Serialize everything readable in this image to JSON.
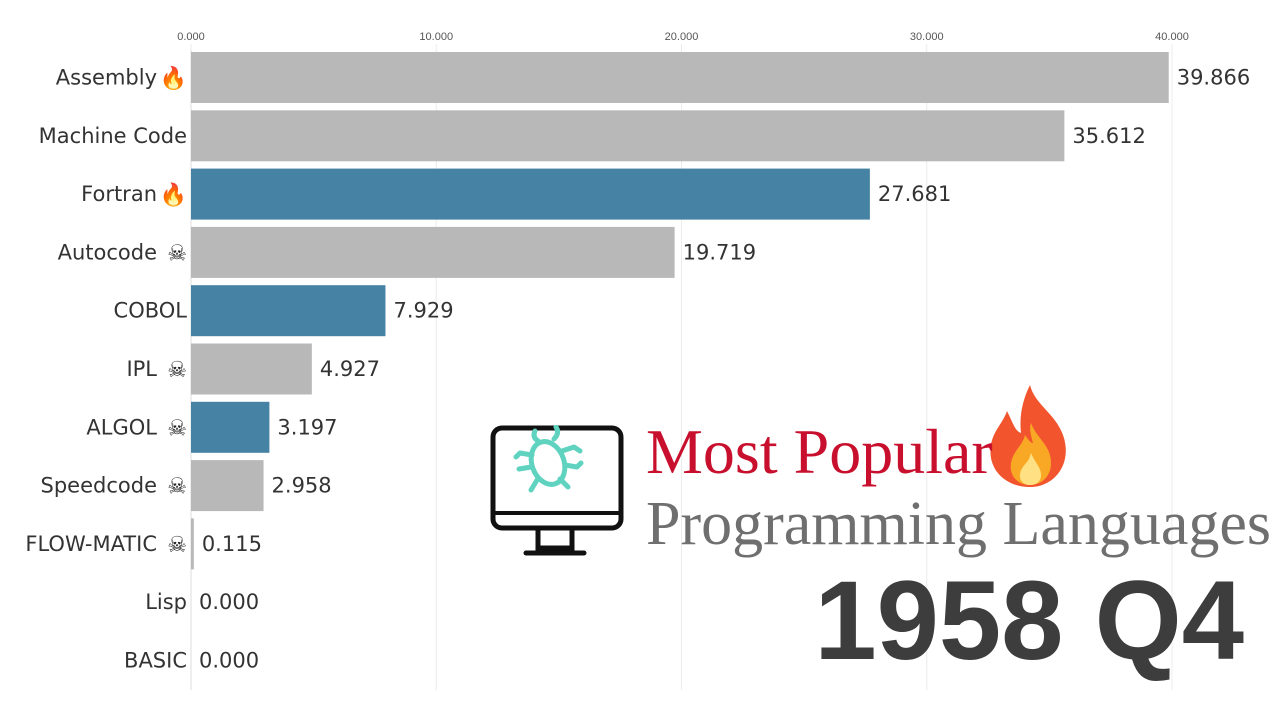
{
  "title": {
    "line1": "Most Popular",
    "line2": "Programming Languages"
  },
  "period_label": "1958 Q4",
  "icons": {
    "monitor": "monitor-bug-icon",
    "title_flame": "fire-icon"
  },
  "colors": {
    "bar_gray": "#b8b8b8",
    "bar_blue": "#4682a3",
    "title_red": "#c8102e",
    "title_gray": "#6f6f6f",
    "period": "#3d3d3d",
    "bug": "#5fd3bf"
  },
  "chart_data": {
    "type": "bar",
    "orientation": "horizontal",
    "xlim": [
      0,
      40
    ],
    "xticks": [
      {
        "value": 0,
        "label": "0.000"
      },
      {
        "value": 10,
        "label": "10.000"
      },
      {
        "value": 20,
        "label": "20.000"
      },
      {
        "value": 30,
        "label": "30.000"
      },
      {
        "value": 40,
        "label": "40.000"
      }
    ],
    "grid": true,
    "bars": [
      {
        "label": "Assembly",
        "value": 39.866,
        "value_label": "39.866",
        "color": "#b8b8b8",
        "icon": "fire"
      },
      {
        "label": "Machine Code",
        "value": 35.612,
        "value_label": "35.612",
        "color": "#b8b8b8",
        "icon": ""
      },
      {
        "label": "Fortran",
        "value": 27.681,
        "value_label": "27.681",
        "color": "#4682a3",
        "icon": "fire"
      },
      {
        "label": "Autocode",
        "value": 19.719,
        "value_label": "19.719",
        "color": "#b8b8b8",
        "icon": "skull-crossbones"
      },
      {
        "label": "COBOL",
        "value": 7.929,
        "value_label": "7.929",
        "color": "#4682a3",
        "icon": ""
      },
      {
        "label": "IPL",
        "value": 4.927,
        "value_label": "4.927",
        "color": "#b8b8b8",
        "icon": "skull-crossbones"
      },
      {
        "label": "ALGOL",
        "value": 3.197,
        "value_label": "3.197",
        "color": "#4682a3",
        "icon": "skull-crossbones"
      },
      {
        "label": "Speedcode",
        "value": 2.958,
        "value_label": "2.958",
        "color": "#b8b8b8",
        "icon": "skull-crossbones"
      },
      {
        "label": "FLOW-MATIC",
        "value": 0.115,
        "value_label": "0.115",
        "color": "#b8b8b8",
        "icon": "skull-crossbones"
      },
      {
        "label": "Lisp",
        "value": 0.0,
        "value_label": "0.000",
        "color": "#b8b8b8",
        "icon": ""
      },
      {
        "label": "BASIC",
        "value": 0.0,
        "value_label": "0.000",
        "color": "#b8b8b8",
        "icon": ""
      }
    ]
  }
}
